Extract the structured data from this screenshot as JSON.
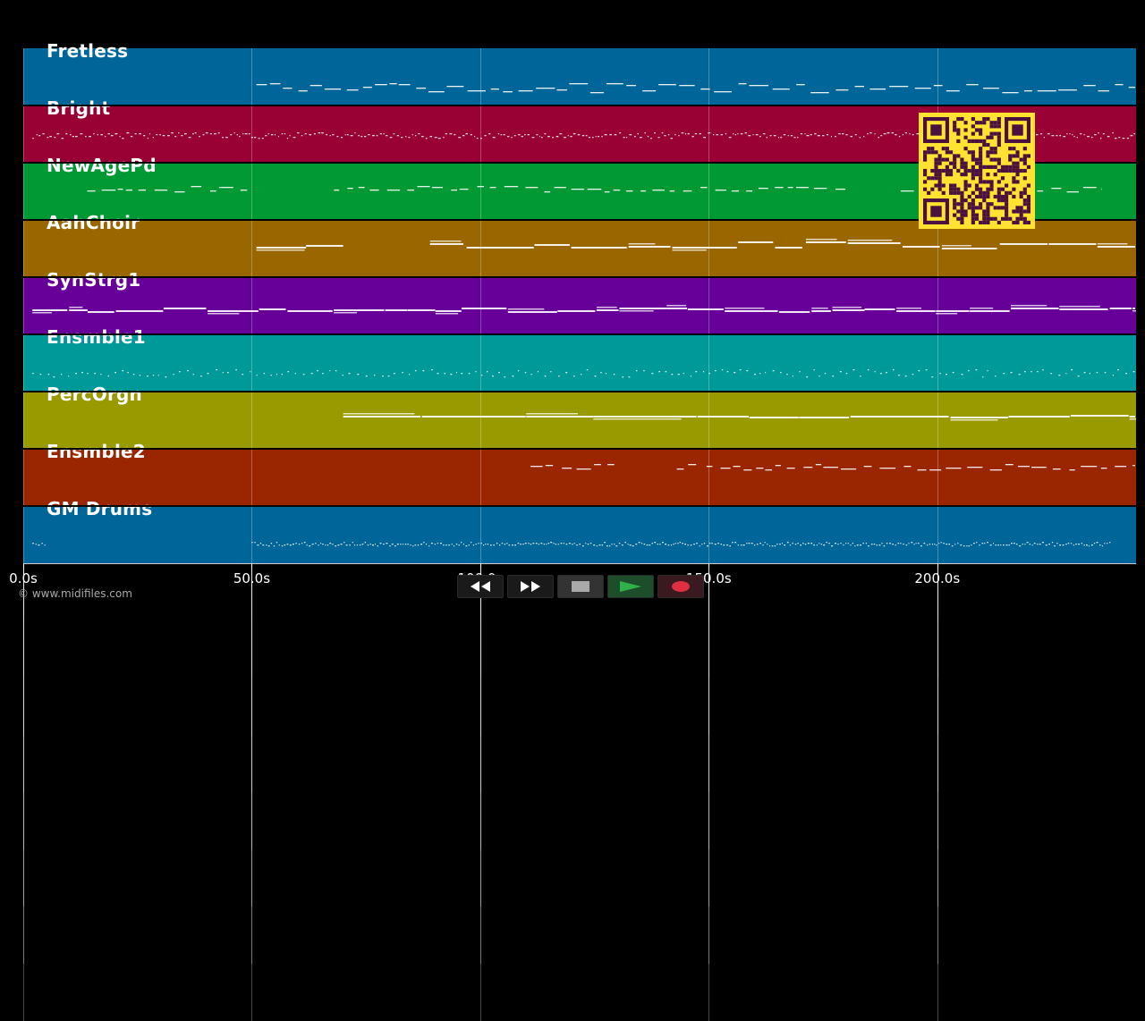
{
  "tracks": [
    {
      "name": "Fretless",
      "color": "#006699"
    },
    {
      "name": "Bright",
      "color": "#990033"
    },
    {
      "name": "NewAgePd",
      "color": "#009933"
    },
    {
      "name": "AahChoir",
      "color": "#996600"
    },
    {
      "name": "SynStrg1",
      "color": "#660099"
    },
    {
      "name": "Ensmble1",
      "color": "#009999"
    },
    {
      "name": "PercOrgn",
      "color": "#999900"
    },
    {
      "name": "Ensmble2",
      "color": "#992600"
    },
    {
      "name": "GM Drums",
      "color": "#006699"
    }
  ],
  "timeline": {
    "range_seconds": [
      0,
      243.5
    ],
    "ticks": [
      {
        "value": 0,
        "label": "0.0s"
      },
      {
        "value": 50,
        "label": "50.0s"
      },
      {
        "value": 100,
        "label": "100.0s"
      },
      {
        "value": 150,
        "label": "150.0s"
      },
      {
        "value": 200,
        "label": "200.0s"
      }
    ]
  },
  "copyright": "© www.midifiles.com",
  "controls": {
    "rewind_icon": "rewind-icon",
    "fast_forward_icon": "fast-forward-icon",
    "stop_icon": "stop-icon",
    "play_icon": "play-icon",
    "record_icon": "record-icon"
  },
  "colors": {
    "background": "#000000",
    "note": "#ffffff",
    "qr_background": "#ffe330",
    "qr_foreground": "#4a1040",
    "play_accent": "#2db34a",
    "record_accent": "#e03040"
  },
  "qr_code": {
    "icon": "qr-code-icon"
  }
}
